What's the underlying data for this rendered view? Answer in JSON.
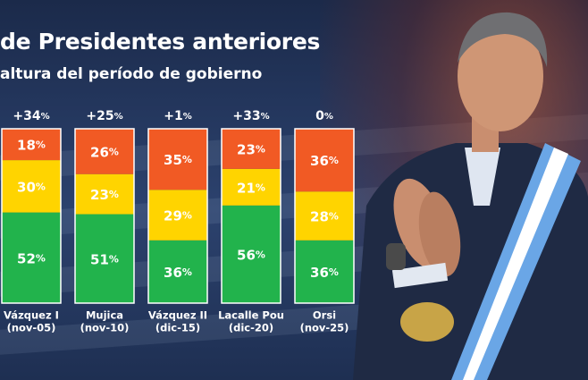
{
  "header": {
    "title": "de Presidentes anteriores",
    "subtitle": "altura del período de gobierno"
  },
  "colors": {
    "disapprove": "#f15a24",
    "neutral": "#ffd400",
    "approve": "#22b34c",
    "bar_border": "#ffffff",
    "label_text": "#ffffff"
  },
  "chart_data": {
    "type": "bar",
    "stacked": true,
    "orientation": "vertical",
    "categories": [
      {
        "name": "Vázquez I",
        "period": "(nov-05)"
      },
      {
        "name": "Mujica",
        "period": "(nov-10)"
      },
      {
        "name": "Vázquez II",
        "period": "(dic-15)"
      },
      {
        "name": "Lacalle Pou",
        "period": "(dic-20)"
      },
      {
        "name": "Orsi",
        "period": "(nov-25)"
      }
    ],
    "series": [
      {
        "name": "approve",
        "color": "#22b34c",
        "values": [
          52,
          51,
          36,
          56,
          36
        ]
      },
      {
        "name": "neutral",
        "color": "#ffd400",
        "values": [
          30,
          23,
          29,
          21,
          28
        ]
      },
      {
        "name": "disapprove",
        "color": "#f15a24",
        "values": [
          18,
          26,
          35,
          23,
          36
        ]
      }
    ],
    "net_labels": [
      "+34",
      "+25",
      "+1",
      "+33",
      "0"
    ],
    "value_suffix": "%",
    "ylim": [
      0,
      100
    ],
    "legend": "none",
    "grid": false
  }
}
